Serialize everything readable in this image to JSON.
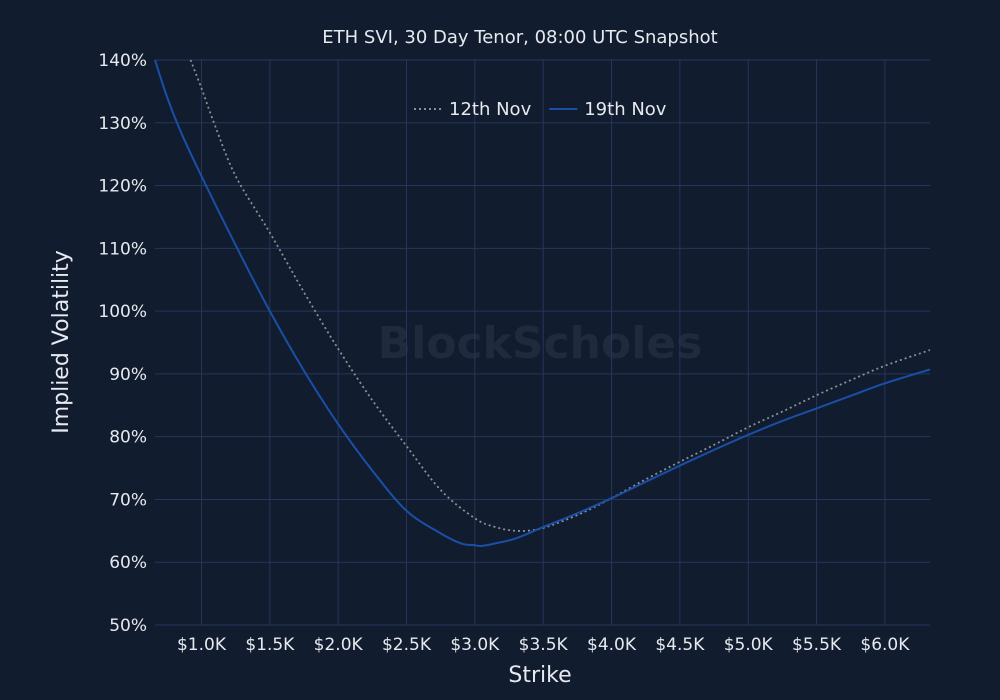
{
  "chart_data": {
    "type": "line",
    "title": "ETH SVI, 30 Day Tenor, 08:00 UTC Snapshot",
    "xlabel": "Strike",
    "ylabel": "Implied Volatility",
    "xlim": [
      660,
      6330
    ],
    "ylim": [
      50,
      140
    ],
    "x_ticks": [
      1000,
      1500,
      2000,
      2500,
      3000,
      3500,
      4000,
      4500,
      5000,
      5500,
      6000
    ],
    "x_tick_labels": [
      "$1.0K",
      "$1.5K",
      "$2.0K",
      "$2.5K",
      "$3.0K",
      "$3.5K",
      "$4.0K",
      "$4.5K",
      "$5.0K",
      "$5.5K",
      "$6.0K"
    ],
    "y_ticks": [
      50,
      60,
      70,
      80,
      90,
      100,
      110,
      120,
      130,
      140
    ],
    "y_tick_labels": [
      "50%",
      "60%",
      "70%",
      "80%",
      "90%",
      "100%",
      "110%",
      "120%",
      "130%",
      "140%"
    ],
    "grid": true,
    "legend_position": "top-center",
    "watermark": "BlockScholes",
    "series": [
      {
        "name": "12th Nov",
        "style": "dotted",
        "color": "#8a8f99",
        "x": [
          920,
          1000,
          1100,
          1250,
          1500,
          1750,
          2000,
          2250,
          2500,
          2750,
          3000,
          3150,
          3300,
          3450,
          3600,
          3800,
          4000,
          4250,
          4500,
          4750,
          5000,
          5250,
          5500,
          5750,
          6000,
          6330
        ],
        "y": [
          140,
          135.5,
          129.5,
          121.5,
          112.5,
          103,
          94,
          85.8,
          78.5,
          71.5,
          67,
          65.6,
          65,
          65.2,
          66.2,
          68,
          70.2,
          73.2,
          76,
          78.7,
          81.5,
          84,
          86.6,
          89,
          91.3,
          93.8
        ]
      },
      {
        "name": "19th Nov",
        "style": "solid",
        "color": "#1a4fa8",
        "x": [
          660,
          750,
          850,
          1000,
          1250,
          1500,
          1750,
          2000,
          2250,
          2500,
          2750,
          2900,
          3000,
          3050,
          3150,
          3300,
          3500,
          3750,
          4000,
          4250,
          4500,
          4750,
          5000,
          5250,
          5500,
          5750,
          6000,
          6330
        ],
        "y": [
          140,
          134,
          128.5,
          121.5,
          110.5,
          100,
          90.5,
          82,
          74.6,
          68.2,
          64.6,
          63,
          62.7,
          62.6,
          63,
          63.8,
          65.6,
          67.8,
          70.2,
          72.8,
          75.4,
          77.9,
          80.3,
          82.5,
          84.5,
          86.5,
          88.5,
          90.7
        ]
      }
    ]
  }
}
